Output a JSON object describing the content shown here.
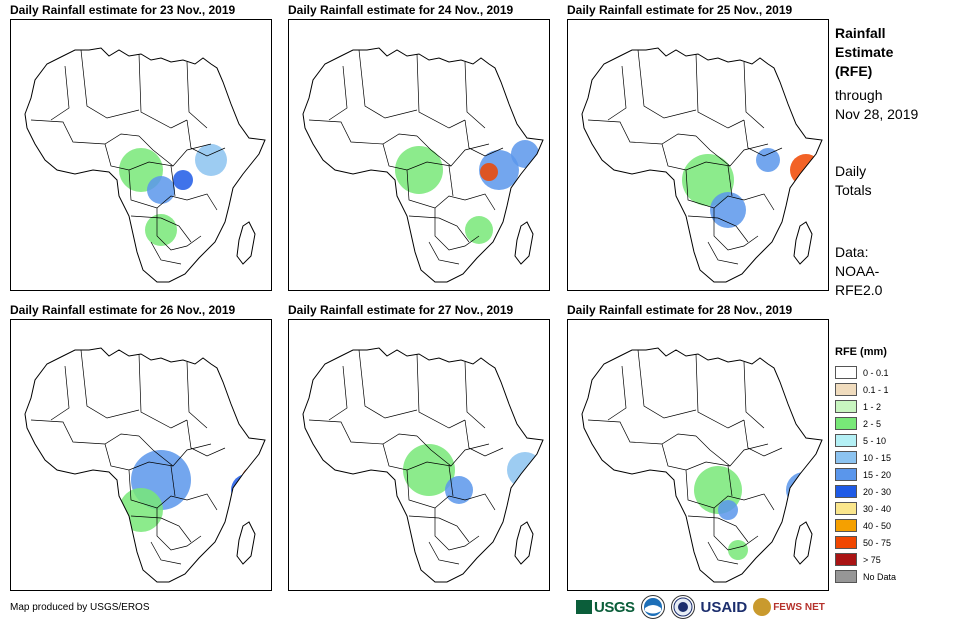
{
  "panels": [
    {
      "title": "Daily Rainfall estimate for 23 Nov., 2019"
    },
    {
      "title": "Daily Rainfall estimate for 24 Nov., 2019"
    },
    {
      "title": "Daily Rainfall estimate for 25 Nov., 2019"
    },
    {
      "title": "Daily Rainfall estimate for 26 Nov., 2019"
    },
    {
      "title": "Daily Rainfall estimate for 27 Nov., 2019"
    },
    {
      "title": "Daily Rainfall estimate for 28 Nov., 2019"
    }
  ],
  "sidebar": {
    "title_1": "Rainfall",
    "title_2": "Estimate",
    "title_3": "(RFE)",
    "through_1": "through",
    "through_2": "Nov 28, 2019",
    "totals_1": "Daily",
    "totals_2": "Totals",
    "data_1": "Data:",
    "data_2": "NOAA-",
    "data_3": "RFE2.0"
  },
  "legend": {
    "title": "RFE (mm)",
    "items": [
      {
        "label": "0 - 0.1",
        "color": "#ffffff"
      },
      {
        "label": "0.1 - 1",
        "color": "#f0dcbe"
      },
      {
        "label": "1 - 2",
        "color": "#c8f5c0"
      },
      {
        "label": "2 - 5",
        "color": "#78e878"
      },
      {
        "label": "5 - 10",
        "color": "#b4f0f5"
      },
      {
        "label": "10 - 15",
        "color": "#8cc3f0"
      },
      {
        "label": "15 - 20",
        "color": "#5a96eb"
      },
      {
        "label": "20 - 30",
        "color": "#1e5ae6"
      },
      {
        "label": "30 - 40",
        "color": "#fae68c"
      },
      {
        "label": "40 - 50",
        "color": "#f5a000"
      },
      {
        "label": "50 - 75",
        "color": "#f04600"
      },
      {
        "label": "> 75",
        "color": "#aa1414"
      },
      {
        "label": "No Data",
        "color": "#969696"
      }
    ]
  },
  "footer": {
    "credit": "Map produced by USGS/EROS",
    "logo_usgs": "USGS",
    "logo_usaid": "USAID",
    "logo_fews": "FEWS NET"
  }
}
